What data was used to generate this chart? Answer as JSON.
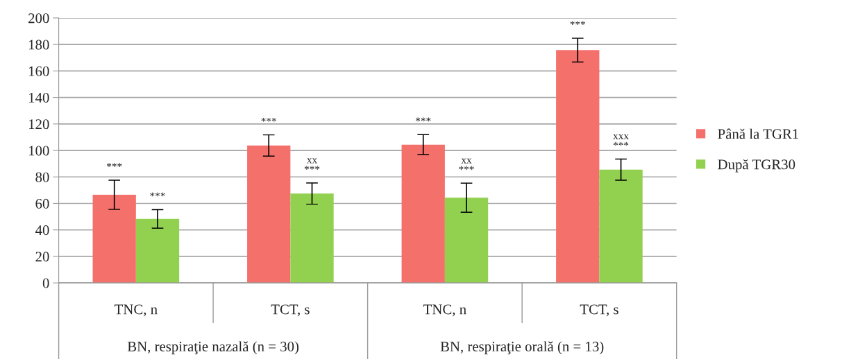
{
  "chart_data": {
    "type": "bar",
    "categories": [
      "TNC, n",
      "TCT, s",
      "TNC, n",
      "TCT, s"
    ],
    "series": [
      {
        "name": "Până la TGR1",
        "color": "#f4706b",
        "values": [
          66.5,
          103.7,
          104.4,
          175.7
        ],
        "errors": [
          11,
          8,
          7.5,
          9
        ],
        "value_labels": [
          "***",
          "***",
          "***",
          "***"
        ]
      },
      {
        "name": "După TGR30",
        "color": "#92d050",
        "values": [
          48.3,
          67.4,
          64.3,
          85.5
        ],
        "errors": [
          7,
          8,
          11,
          8
        ],
        "value_labels": [
          "***",
          "xx\n***",
          "xx\n***",
          "xxx\n***"
        ]
      }
    ],
    "annotations": [
      "BN, respiraţie nazală (n = 30)",
      "BN, respiraţie orală (n = 13)"
    ],
    "ylim": [
      0,
      200
    ],
    "yticks": [
      0,
      20,
      40,
      60,
      80,
      100,
      120,
      140,
      160,
      180,
      200
    ],
    "grid": "y",
    "legend": "right"
  }
}
